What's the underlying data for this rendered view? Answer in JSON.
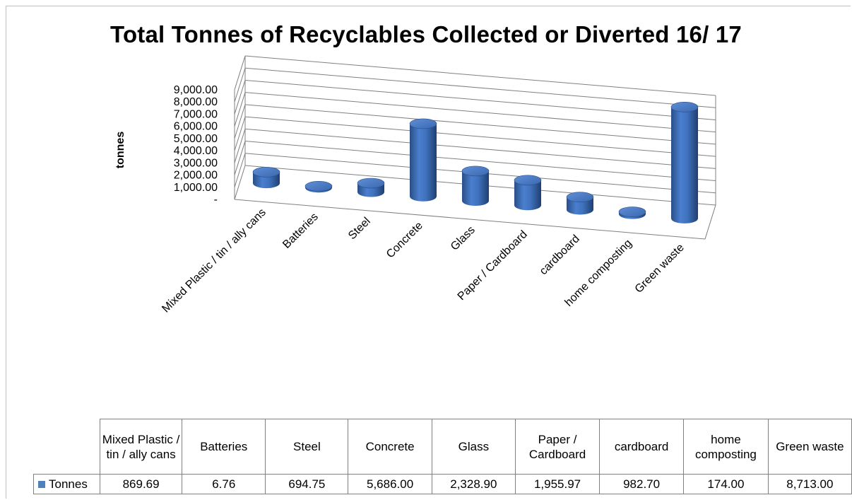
{
  "chart_data": {
    "type": "bar",
    "title": "Total Tonnes of Recyclables Collected or Diverted  16/ 17",
    "ylabel": "tonnes",
    "xlabel": "",
    "ylim": [
      0,
      9000
    ],
    "yticks": [
      0,
      1000,
      2000,
      3000,
      4000,
      5000,
      6000,
      7000,
      8000,
      9000
    ],
    "ytick_labels": [
      "-",
      "1,000.00",
      "2,000.00",
      "3,000.00",
      "4,000.00",
      "5,000.00",
      "6,000.00",
      "7,000.00",
      "8,000.00",
      "9,000.00"
    ],
    "grid": true,
    "style": "3d-cylinder",
    "categories": [
      "Mixed Plastic / tin  / ally cans",
      "Batteries",
      "Steel",
      "Concrete",
      "Glass",
      "Paper / Cardboard",
      "cardboard",
      "home composting",
      "Green waste"
    ],
    "series": [
      {
        "name": "Tonnes",
        "color": "#4f81bd",
        "values": [
          869.69,
          6.76,
          694.75,
          5686.0,
          2328.9,
          1955.97,
          982.7,
          174.0,
          8713.0
        ]
      }
    ]
  },
  "table": {
    "header_cells": [
      "Mixed Plastic / tin  / ally cans",
      "Batteries",
      "Steel",
      "Concrete",
      "Glass",
      "Paper / Cardboard",
      "cardboard",
      "home composting",
      "Green waste"
    ],
    "legend_label": "Tonnes",
    "values": [
      "869.69",
      "6.76",
      "694.75",
      "5,686.00",
      "2,328.90",
      "1,955.97",
      "982.70",
      "174.00",
      "8,713.00"
    ]
  },
  "colors": {
    "bar": "#4f81bd",
    "bar_dark": "#2a4e86",
    "grid": "#808080"
  }
}
